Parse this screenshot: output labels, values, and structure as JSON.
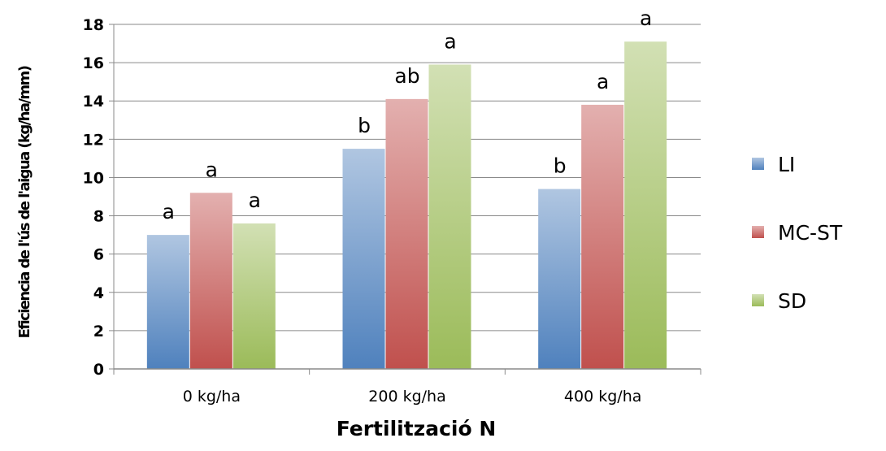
{
  "chart_data": {
    "type": "bar",
    "categories": [
      "0 kg/ha",
      "200 kg/ha",
      "400 kg/ha"
    ],
    "series": [
      {
        "name": "LI",
        "values": [
          7.0,
          11.5,
          9.4
        ],
        "color": "#4f81bd",
        "labels": [
          "a",
          "b",
          "b"
        ]
      },
      {
        "name": "MC-ST",
        "values": [
          9.2,
          14.1,
          13.8
        ],
        "color": "#c0504d",
        "labels": [
          "a",
          "ab",
          "a"
        ]
      },
      {
        "name": "SD",
        "values": [
          7.6,
          15.9,
          17.1
        ],
        "color": "#9bbb59",
        "labels": [
          "a",
          "a",
          "a"
        ]
      }
    ],
    "xlabel": "Fertilització N",
    "ylabel": "Eficiencia de l'ús de l'aigua (kg/ha/mm)",
    "ylim": [
      0,
      18
    ],
    "yticks": [
      0,
      2,
      4,
      6,
      8,
      10,
      12,
      14,
      16,
      18
    ],
    "grid": true,
    "legend_position": "right"
  }
}
